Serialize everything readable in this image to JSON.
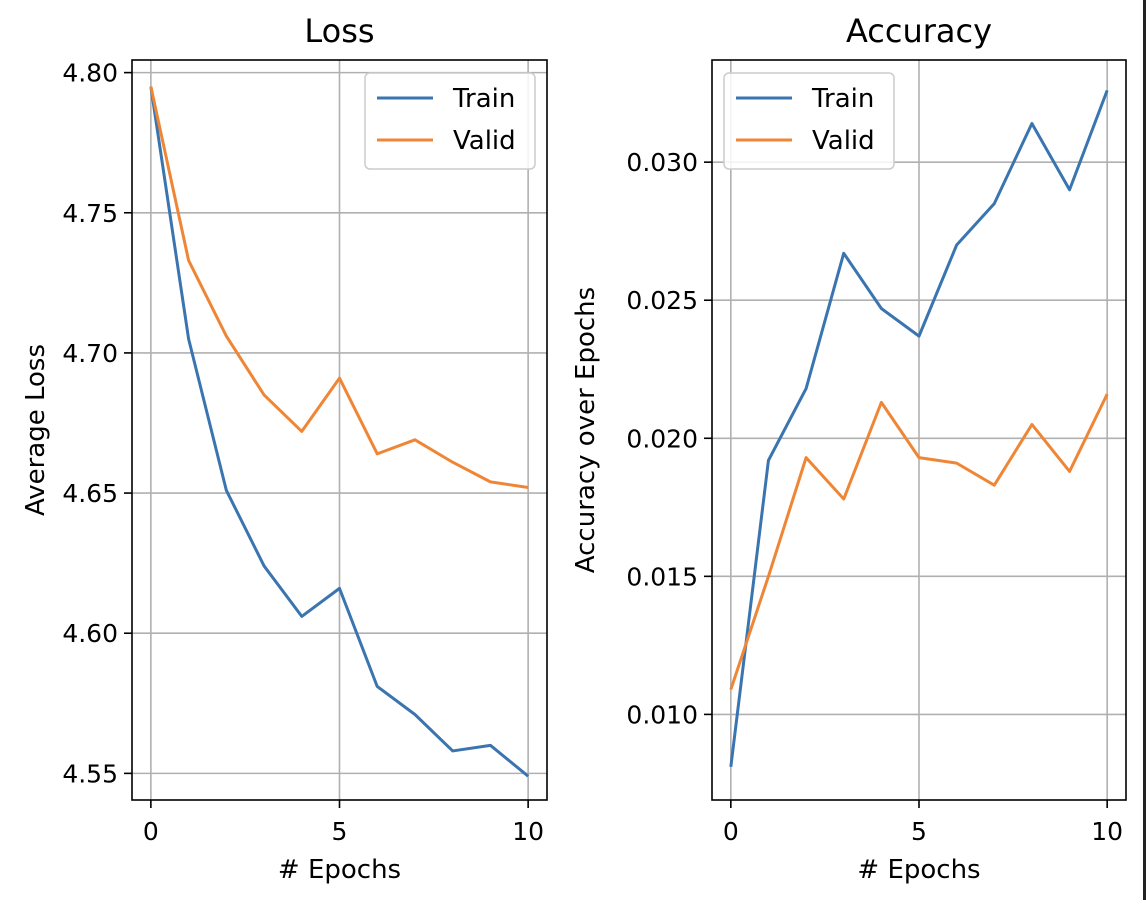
{
  "colors": {
    "train": "#3a75b0",
    "valid": "#ef8636"
  },
  "chart_data": [
    {
      "type": "line",
      "title": "Loss",
      "xlabel": "# Epochs",
      "ylabel": "Average Loss",
      "xlim": [
        -0.5,
        10.5
      ],
      "ylim": [
        4.5405,
        4.8045
      ],
      "grid": true,
      "legend": "top-right",
      "xticks": [
        0,
        5,
        10
      ],
      "xtick_labels": [
        "0",
        "5",
        "10"
      ],
      "yticks": [
        4.55,
        4.6,
        4.65,
        4.7,
        4.75,
        4.8
      ],
      "ytick_labels": [
        "4.55",
        "4.60",
        "4.65",
        "4.70",
        "4.75",
        "4.80"
      ],
      "x": [
        0,
        1,
        2,
        3,
        4,
        5,
        6,
        7,
        8,
        9,
        10
      ],
      "series": [
        {
          "name": "Train",
          "color": "#3a75b0",
          "values": [
            4.795,
            4.705,
            4.651,
            4.624,
            4.606,
            4.616,
            4.581,
            4.571,
            4.558,
            4.56,
            4.549
          ]
        },
        {
          "name": "Valid",
          "color": "#ef8636",
          "values": [
            4.795,
            4.733,
            4.706,
            4.685,
            4.672,
            4.691,
            4.664,
            4.669,
            4.661,
            4.654,
            4.652
          ]
        }
      ]
    },
    {
      "type": "line",
      "title": "Accuracy",
      "xlabel": "# Epochs",
      "ylabel": "Accuracy over Epochs",
      "xlim": [
        -0.5,
        10.5
      ],
      "ylim": [
        0.0069,
        0.0337
      ],
      "grid": true,
      "legend": "top-left",
      "xticks": [
        0,
        5,
        10
      ],
      "xtick_labels": [
        "0",
        "5",
        "10"
      ],
      "yticks": [
        0.01,
        0.015,
        0.02,
        0.025,
        0.03
      ],
      "ytick_labels": [
        "0.010",
        "0.015",
        "0.020",
        "0.025",
        "0.030"
      ],
      "x": [
        0,
        1,
        2,
        3,
        4,
        5,
        6,
        7,
        8,
        9,
        10
      ],
      "series": [
        {
          "name": "Train",
          "color": "#3a75b0",
          "values": [
            0.0081,
            0.0192,
            0.0218,
            0.0267,
            0.0247,
            0.0237,
            0.027,
            0.0285,
            0.0314,
            0.029,
            0.0326
          ]
        },
        {
          "name": "Valid",
          "color": "#ef8636",
          "values": [
            0.0109,
            0.015,
            0.0193,
            0.0178,
            0.0213,
            0.0193,
            0.0191,
            0.0183,
            0.0205,
            0.0188,
            0.0216
          ]
        }
      ]
    }
  ]
}
